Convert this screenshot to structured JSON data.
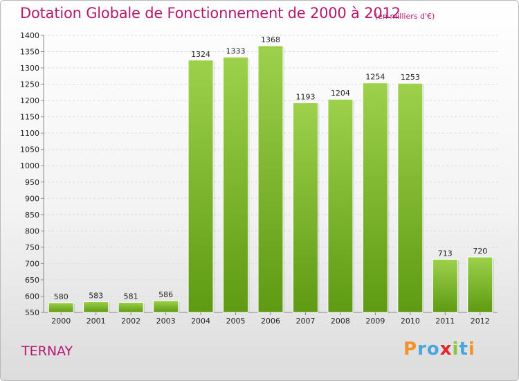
{
  "colors": {
    "title": "#b5176c",
    "place": "#b5176c",
    "bar_top": "#9dd14b",
    "bar_bottom": "#5e9a13",
    "grid": "#dcdcdc",
    "text": "#222222"
  },
  "chart_data": {
    "type": "bar",
    "title": "Dotation Globale de Fonctionnement de 2000 à 2012",
    "subtitle": "(en milliers d'€)",
    "xlabel": "",
    "ylabel": "",
    "categories": [
      "2000",
      "2001",
      "2002",
      "2003",
      "2004",
      "2005",
      "2006",
      "2007",
      "2008",
      "2009",
      "2010",
      "2011",
      "2012"
    ],
    "values": [
      580,
      583,
      581,
      586,
      1324,
      1333,
      1368,
      1193,
      1204,
      1254,
      1253,
      713,
      720
    ],
    "value_labels": [
      "580",
      "583",
      "581",
      "586",
      "1324",
      "1333",
      "1368",
      "1193",
      "1204",
      "1254",
      "1253",
      "713",
      "720"
    ],
    "ylim": [
      550,
      1400
    ],
    "yticks": [
      550,
      600,
      650,
      700,
      750,
      800,
      850,
      900,
      950,
      1000,
      1050,
      1100,
      1150,
      1200,
      1250,
      1300,
      1350,
      1400
    ],
    "grid": true
  },
  "footer": {
    "place": "TERNAY",
    "logo": "Proxiti",
    "logo_letters": [
      {
        "ch": "P",
        "color": "#f39325"
      },
      {
        "ch": "r",
        "color": "#49a6dc"
      },
      {
        "ch": "o",
        "color": "#49a6dc"
      },
      {
        "ch": "x",
        "color": "#e4262d"
      },
      {
        "ch": "i",
        "color": "#8cc63f"
      },
      {
        "ch": "t",
        "color": "#49a6dc"
      },
      {
        "ch": "i",
        "color": "#f39325"
      }
    ]
  }
}
